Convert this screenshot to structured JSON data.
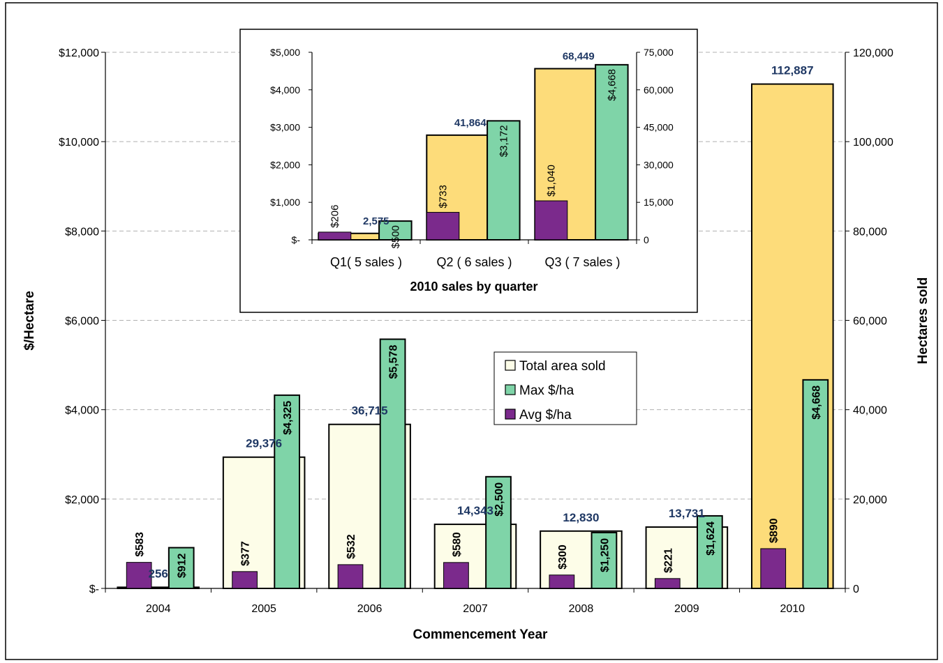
{
  "chart_data": [
    {
      "type": "bar",
      "categories": [
        "2004",
        "2005",
        "2006",
        "2007",
        "2008",
        "2009",
        "2010"
      ],
      "xlabel": "Commencement Year",
      "ylabel": "$/Hectare",
      "ylabel_right": "Hectares sold",
      "ylim": [
        0,
        12000
      ],
      "ylim_right": [
        0,
        120000
      ],
      "y_ticks": [
        "$-",
        "$2,000",
        "$4,000",
        "$6,000",
        "$8,000",
        "$10,000",
        "$12,000"
      ],
      "y_ticks_right": [
        "0",
        "20,000",
        "40,000",
        "60,000",
        "80,000",
        "100,000",
        "120,000"
      ],
      "grid": "dashed horizontal",
      "series": [
        {
          "name": "Total area sold",
          "axis": "right",
          "values": [
            256,
            29376,
            36715,
            14343,
            12830,
            13731,
            112887
          ],
          "labels": [
            "256",
            "29,376",
            "36,715",
            "14,343",
            "12,830",
            "13,731",
            "112,887"
          ]
        },
        {
          "name": "Max $/ha",
          "axis": "left",
          "values": [
            912,
            4325,
            5578,
            2500,
            1250,
            1624,
            4668
          ],
          "labels": [
            "$912",
            "$4,325",
            "$5,578",
            "$2,500",
            "$1,250",
            "$1,624",
            "$4,668"
          ]
        },
        {
          "name": "Avg $/ha",
          "axis": "left",
          "values": [
            583,
            377,
            532,
            580,
            300,
            221,
            890
          ],
          "labels": [
            "$583",
            "$377",
            "$532",
            "$580",
            "$300",
            "$221",
            "$890"
          ]
        }
      ],
      "legend": [
        {
          "label": "Total area sold",
          "color": "#fdfde8"
        },
        {
          "label": "Max $/ha",
          "color": "#7fd4a8"
        },
        {
          "label": "Avg $/ha",
          "color": "#7b2a8c"
        }
      ],
      "legend_position": "center",
      "colors": {
        "area": "#fdfde8",
        "area_highlight": "#fddc7a",
        "max": "#7fd4a8",
        "avg": "#7b2a8c",
        "area_label": "#1f3864"
      }
    },
    {
      "type": "bar",
      "title": "2010 sales by quarter",
      "categories": [
        "Q1( 5 sales )",
        "Q2 ( 6 sales )",
        "Q3 ( 7 sales )"
      ],
      "ylim": [
        0,
        5000
      ],
      "ylim_right": [
        0,
        75000
      ],
      "y_ticks": [
        "$-",
        "$1,000",
        "$2,000",
        "$3,000",
        "$4,000",
        "$5,000"
      ],
      "y_ticks_right": [
        "0",
        "15,000",
        "30,000",
        "45,000",
        "60,000",
        "75,000"
      ],
      "series": [
        {
          "name": "Total area sold",
          "axis": "right",
          "values": [
            2575,
            41864,
            68449
          ],
          "labels": [
            "2,575",
            "41,864",
            "68,449"
          ]
        },
        {
          "name": "Max $/ha",
          "axis": "left",
          "values": [
            500,
            3172,
            4668
          ],
          "labels": [
            "$500",
            "$3,172",
            "$4,668"
          ]
        },
        {
          "name": "Avg $/ha",
          "axis": "left",
          "values": [
            206,
            733,
            1040
          ],
          "labels": [
            "$206",
            "$733",
            "$1,040"
          ]
        }
      ],
      "colors": {
        "area": "#fddc7a",
        "max": "#7fd4a8",
        "avg": "#7b2a8c",
        "area_label": "#1f3864"
      }
    }
  ]
}
